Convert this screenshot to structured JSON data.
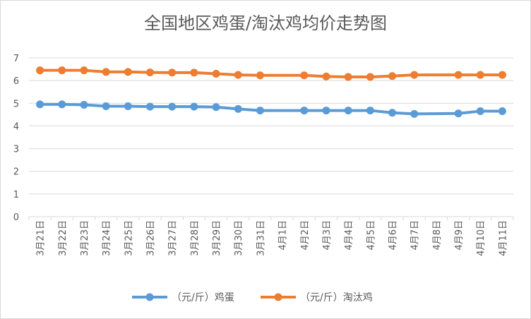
{
  "chart_data": {
    "type": "line",
    "title": "全国地区鸡蛋/淘汰鸡均价走势图",
    "xlabel": "",
    "ylabel": "",
    "ylim": [
      0,
      7
    ],
    "yticks": [
      0,
      1,
      2,
      3,
      4,
      5,
      6,
      7
    ],
    "grid": true,
    "legend_position": "bottom",
    "categories": [
      "3月21日",
      "3月22日",
      "3月23日",
      "3月24日",
      "3月25日",
      "3月26日",
      "3月27日",
      "3月28日",
      "3月29日",
      "3月30日",
      "3月31日",
      "4月1日",
      "4月2日",
      "4月3日",
      "4月4日",
      "4月5日",
      "4月6日",
      "4月7日",
      "4月8日",
      "4月9日",
      "4月10日",
      "4月11日"
    ],
    "series": [
      {
        "name": "（元/斤）鸡蛋",
        "color": "#5B9BD5",
        "values": [
          4.95,
          4.95,
          4.93,
          4.87,
          4.87,
          4.85,
          4.85,
          4.85,
          4.83,
          4.75,
          4.68,
          null,
          4.68,
          4.68,
          4.68,
          4.68,
          4.58,
          4.53,
          null,
          4.55,
          4.65,
          4.65
        ]
      },
      {
        "name": "（元/斤）淘汰鸡",
        "color": "#ED7D31",
        "values": [
          6.45,
          6.45,
          6.45,
          6.38,
          6.38,
          6.36,
          6.35,
          6.35,
          6.3,
          6.25,
          6.23,
          null,
          6.23,
          6.18,
          6.16,
          6.16,
          6.2,
          6.25,
          null,
          6.25,
          6.25,
          6.25
        ]
      }
    ]
  }
}
